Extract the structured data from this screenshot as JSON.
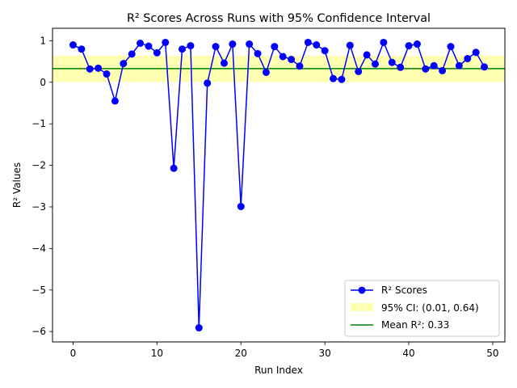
{
  "chart_data": {
    "type": "line",
    "title": "R² Scores Across Runs with 95% Confidence Interval",
    "xlabel": "Run Index",
    "ylabel": "R² Values",
    "xlim": [
      -2.45,
      51.45
    ],
    "ylim": [
      -6.25,
      1.3
    ],
    "xticks": [
      0,
      10,
      20,
      30,
      40,
      50
    ],
    "yticks": [
      1,
      0,
      -1,
      -2,
      -3,
      -4,
      -5,
      -6
    ],
    "ytick_labels": [
      "1",
      "0",
      "−1",
      "−2",
      "−3",
      "−4",
      "−5",
      "−6"
    ],
    "series": [
      {
        "name": "R² Scores",
        "color": "#0000ff",
        "marker": "circle",
        "x": [
          0,
          1,
          2,
          3,
          4,
          5,
          6,
          7,
          8,
          9,
          10,
          11,
          12,
          13,
          14,
          15,
          16,
          17,
          18,
          19,
          20,
          21,
          22,
          23,
          24,
          25,
          26,
          27,
          28,
          29,
          30,
          31,
          32,
          33,
          34,
          35,
          36,
          37,
          38,
          39,
          40,
          41,
          42,
          43,
          44,
          45,
          46,
          47,
          48,
          49
        ],
        "y": [
          0.9,
          0.8,
          0.32,
          0.34,
          0.2,
          -0.45,
          0.45,
          0.68,
          0.94,
          0.87,
          0.71,
          0.96,
          -2.07,
          0.8,
          0.88,
          -5.91,
          -0.02,
          0.86,
          0.46,
          0.92,
          -2.99,
          0.92,
          0.69,
          0.24,
          0.86,
          0.62,
          0.55,
          0.39,
          0.96,
          0.9,
          0.76,
          0.09,
          0.07,
          0.89,
          0.26,
          0.66,
          0.44,
          0.96,
          0.48,
          0.36,
          0.88,
          0.92,
          0.32,
          0.4,
          0.28,
          0.86,
          0.4,
          0.57,
          0.72,
          0.37
        ]
      }
    ],
    "confidence_interval": {
      "label": "95% CI: (0.01, 0.64)",
      "low": 0.01,
      "high": 0.64,
      "color": "#ffff00"
    },
    "mean_line": {
      "label": "Mean R²: 0.33",
      "value": 0.33,
      "color": "#008000"
    },
    "grid": false,
    "legend_position": "lower-right"
  }
}
